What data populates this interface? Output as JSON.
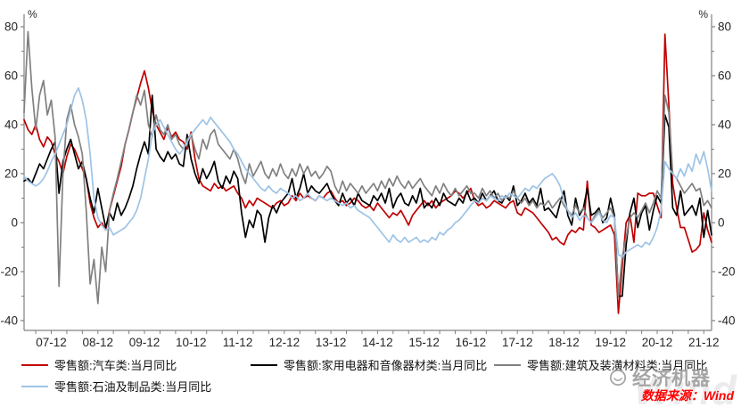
{
  "chart_data": {
    "type": "line",
    "title": "",
    "x_start": "2007-05",
    "x_frequency": "monthly",
    "x_tick_labels": [
      "07-12",
      "08-12",
      "09-12",
      "10-12",
      "11-12",
      "12-12",
      "13-12",
      "14-12",
      "15-12",
      "16-12",
      "17-12",
      "18-12",
      "19-12",
      "20-12",
      "21-12"
    ],
    "x_tick_start_index": 7,
    "x_tick_step": 12,
    "x_minor_tick_step": 4,
    "grid": false,
    "legend_position": "bottom",
    "y_axis": {
      "unit": "%",
      "min": -40,
      "max": 80,
      "ticks": [
        80,
        60,
        40,
        20,
        0,
        -20,
        -40
      ],
      "minor_step": 10,
      "sides": "both"
    },
    "series": [
      {
        "name": "auto-retail-yoy",
        "legend_label": "零售额:汽车类:当月同比",
        "color": "#C00000",
        "values": [
          42,
          38,
          36,
          40,
          34,
          31,
          35,
          33,
          28,
          25,
          20,
          27,
          32,
          30,
          26,
          22,
          18,
          8,
          2,
          -2,
          0,
          -3,
          5,
          11,
          17,
          23,
          32,
          38,
          45,
          51,
          57,
          62,
          55,
          46,
          40,
          37,
          34,
          39,
          35,
          37,
          34,
          33,
          30,
          37,
          26,
          18,
          15,
          14,
          13,
          16,
          14,
          15,
          13,
          14,
          15,
          12,
          10,
          6,
          9,
          7,
          10,
          9,
          8,
          7,
          6,
          8,
          9,
          7,
          8,
          11,
          9,
          12,
          10,
          11,
          10,
          9,
          11,
          10,
          12,
          13,
          10,
          8,
          9,
          7,
          8,
          10,
          9,
          7,
          6,
          7,
          5,
          8,
          6,
          4,
          2,
          4,
          3,
          5,
          2,
          -1,
          3,
          5,
          7,
          9,
          7,
          9,
          6,
          8,
          9,
          10,
          11,
          13,
          12,
          10,
          12,
          14,
          9,
          7,
          8,
          6,
          7,
          9,
          8,
          7,
          6,
          8,
          9,
          4,
          3,
          6,
          5,
          4,
          2,
          0,
          -2,
          -4,
          -7,
          -6,
          -8,
          -9,
          -5,
          -3,
          -4,
          -2,
          -3,
          17,
          -1,
          -2,
          -4,
          -3,
          -2,
          -1,
          -5,
          -37,
          -18,
          0,
          3,
          -8,
          12,
          11,
          11,
          12,
          12,
          7,
          2,
          77,
          48,
          16,
          6,
          -2,
          -2,
          -7,
          -12,
          -11,
          -9,
          4,
          -3,
          -8
        ]
      },
      {
        "name": "appliance-av-retail-yoy",
        "legend_label": "零售额:家用电器和音像器材类:当月同比",
        "color": "#000000",
        "values": [
          17,
          18,
          16,
          20,
          24,
          22,
          26,
          30,
          33,
          12,
          25,
          30,
          34,
          28,
          22,
          25,
          18,
          10,
          4,
          14,
          6,
          -2,
          4,
          1,
          8,
          3,
          6,
          10,
          15,
          22,
          28,
          33,
          28,
          52,
          30,
          27,
          25,
          29,
          26,
          28,
          24,
          23,
          36,
          26,
          20,
          16,
          22,
          18,
          21,
          25,
          17,
          14,
          19,
          16,
          21,
          18,
          4,
          -6,
          1,
          -2,
          5,
          3,
          -8,
          2,
          7,
          4,
          8,
          10,
          12,
          18,
          10,
          14,
          20,
          12,
          15,
          13,
          12,
          14,
          16,
          12,
          9,
          7,
          12,
          8,
          10,
          7,
          12,
          9,
          8,
          7,
          11,
          9,
          12,
          8,
          14,
          6,
          10,
          12,
          8,
          7,
          11,
          8,
          14,
          6,
          8,
          6,
          10,
          7,
          12,
          9,
          8,
          7,
          10,
          8,
          13,
          9,
          10,
          8,
          12,
          9,
          11,
          13,
          9,
          8,
          11,
          9,
          15,
          7,
          9,
          12,
          8,
          10,
          7,
          14,
          5,
          6,
          4,
          2,
          8,
          13,
          3,
          -1,
          10,
          3,
          6,
          14,
          3,
          4,
          6,
          0,
          2,
          10,
          3,
          -30,
          -30,
          -9,
          4,
          10,
          -2,
          4,
          7,
          -3,
          5,
          11,
          8,
          44,
          39,
          6,
          3,
          13,
          3,
          5,
          7,
          3,
          10,
          -6,
          5,
          -5
        ]
      },
      {
        "name": "building-materials-retail-yoy",
        "legend_label": "零售额:建筑及装潢材料类:当月同比",
        "color": "#808080",
        "values": [
          45,
          78,
          55,
          38,
          52,
          58,
          44,
          50,
          35,
          -26,
          20,
          42,
          48,
          40,
          35,
          28,
          5,
          -25,
          -15,
          -33,
          -10,
          -20,
          5,
          12,
          18,
          25,
          32,
          38,
          45,
          52,
          48,
          54,
          40,
          35,
          44,
          38,
          36,
          40,
          34,
          36,
          32,
          30,
          34,
          36,
          30,
          26,
          34,
          30,
          36,
          38,
          32,
          30,
          28,
          26,
          30,
          26,
          20,
          16,
          24,
          19,
          22,
          25,
          20,
          18,
          22,
          19,
          24,
          20,
          18,
          22,
          19,
          24,
          20,
          23,
          19,
          21,
          18,
          20,
          23,
          21,
          15,
          12,
          17,
          13,
          16,
          14,
          12,
          15,
          12,
          14,
          16,
          13,
          17,
          14,
          18,
          15,
          19,
          16,
          14,
          17,
          14,
          16,
          18,
          15,
          13,
          11,
          15,
          12,
          16,
          13,
          11,
          14,
          11,
          13,
          15,
          12,
          12,
          10,
          14,
          11,
          13,
          10,
          12,
          9,
          11,
          10,
          13,
          10,
          8,
          10,
          7,
          9,
          6,
          8,
          7,
          9,
          6,
          8,
          10,
          7,
          5,
          3,
          7,
          4,
          6,
          2,
          0,
          3,
          5,
          2,
          4,
          6,
          2,
          -30,
          -14,
          -6,
          2,
          4,
          2,
          5,
          8,
          4,
          8,
          13,
          10,
          52,
          45,
          20,
          18,
          15,
          12,
          14,
          16,
          13,
          14,
          7,
          9,
          6
        ]
      },
      {
        "name": "petroleum-products-retail-yoy",
        "legend_label": "零售额:石油及制品类:当月同比",
        "color": "#9DC3E6",
        "values": [
          19,
          17,
          16,
          15,
          16,
          18,
          21,
          25,
          28,
          32,
          36,
          40,
          46,
          52,
          55,
          50,
          42,
          28,
          10,
          2,
          -1,
          -3,
          -2,
          -5,
          -4,
          -3,
          -2,
          0,
          2,
          5,
          10,
          18,
          26,
          36,
          40,
          42,
          39,
          36,
          33,
          30,
          28,
          30,
          33,
          36,
          38,
          40,
          42,
          40,
          43,
          41,
          39,
          37,
          35,
          33,
          30,
          28,
          25,
          22,
          20,
          18,
          16,
          14,
          13,
          15,
          13,
          12,
          14,
          13,
          12,
          10,
          11,
          9,
          10,
          12,
          10,
          9,
          11,
          10,
          9,
          10,
          9,
          8,
          7,
          8,
          6,
          7,
          5,
          4,
          3,
          2,
          0,
          -2,
          -4,
          -6,
          -8,
          -5,
          -7,
          -8,
          -6,
          -8,
          -7,
          -6,
          -8,
          -7,
          -8,
          -6,
          -7,
          -4,
          -5,
          -3,
          -2,
          0,
          1,
          3,
          5,
          7,
          9,
          8,
          10,
          9,
          11,
          10,
          9,
          11,
          10,
          12,
          11,
          10,
          12,
          14,
          13,
          15,
          14,
          16,
          18,
          19,
          20,
          18,
          15,
          9,
          5,
          2,
          4,
          1,
          3,
          2,
          0,
          2,
          4,
          1,
          0,
          3,
          2,
          -13,
          -14,
          -12,
          -11,
          -10,
          -9,
          -10,
          -8,
          -9,
          -6,
          -2,
          5,
          25,
          22,
          20,
          18,
          22,
          19,
          24,
          21,
          28,
          24,
          29,
          22,
          13
        ]
      }
    ]
  },
  "source": {
    "text": "数据来源：Wind",
    "color": "#FF0000"
  },
  "watermark": {
    "brand_text": "经济机器",
    "wind_text": "Wind"
  }
}
